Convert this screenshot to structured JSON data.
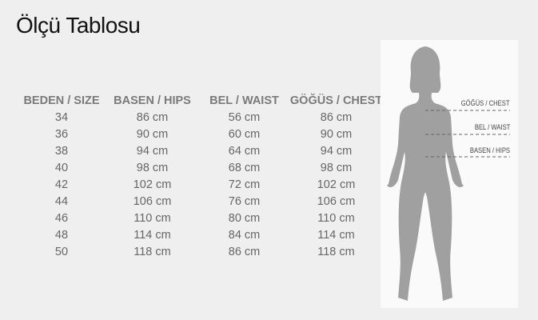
{
  "title": "Ölçü Tablosu",
  "table": {
    "headers": [
      "BEDEN / SIZE",
      "BASEN / HIPS",
      "BEL / WAIST",
      "GÖĞÜS / CHEST"
    ],
    "rows": [
      [
        "34",
        "86 cm",
        "56 cm",
        "86 cm"
      ],
      [
        "36",
        "90 cm",
        "60 cm",
        "90 cm"
      ],
      [
        "38",
        "94 cm",
        "64 cm",
        "94 cm"
      ],
      [
        "40",
        "98 cm",
        "68 cm",
        "98 cm"
      ],
      [
        "42",
        "102 cm",
        "72 cm",
        "102 cm"
      ],
      [
        "44",
        "106 cm",
        "76 cm",
        "106 cm"
      ],
      [
        "46",
        "110 cm",
        "80 cm",
        "110 cm"
      ],
      [
        "48",
        "114 cm",
        "84 cm",
        "114 cm"
      ],
      [
        "50",
        "118 cm",
        "86 cm",
        "118 cm"
      ]
    ]
  },
  "figure": {
    "labels": {
      "chest": "GÖĞÜS / CHEST",
      "waist": "BEL / WAIST",
      "hips": "BASEN / HIPS"
    },
    "silhouette_color": "#a0a0a0"
  }
}
